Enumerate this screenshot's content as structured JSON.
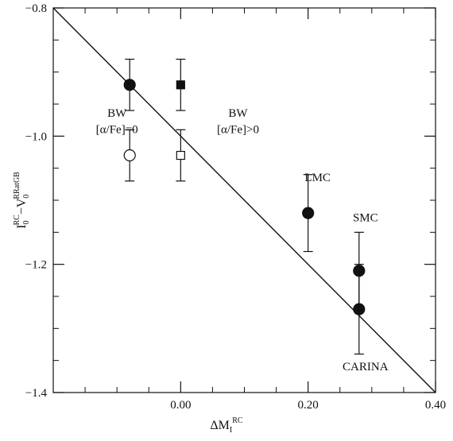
{
  "chart_data": {
    "type": "scatter",
    "xlabel": {
      "main": "ΔM",
      "sub": "I",
      "sup": "RC"
    },
    "ylabel": {
      "a": "I",
      "a_sub": "0",
      "a_sup": "RC",
      "dash": "−V",
      "b_sub": "0",
      "b_sup": "RRatGB"
    },
    "xlim": [
      -0.2,
      0.4
    ],
    "ylim": [
      -1.4,
      -0.8
    ],
    "xticks": [
      {
        "value": 0.0,
        "label": "0.00"
      },
      {
        "value": 0.2,
        "label": "0.20"
      },
      {
        "value": 0.4,
        "label": "0.40"
      }
    ],
    "xticks_minor": [
      -0.15,
      -0.1,
      -0.05,
      0.05,
      0.1,
      0.15,
      0.25,
      0.3,
      0.35
    ],
    "yticks": [
      {
        "value": -0.8,
        "label": "−0.8"
      },
      {
        "value": -1.0,
        "label": "−1.0"
      },
      {
        "value": -1.2,
        "label": "−1.2"
      },
      {
        "value": -1.4,
        "label": "−1.4"
      }
    ],
    "yticks_minor": [
      -0.85,
      -0.9,
      -0.95,
      -1.05,
      -1.1,
      -1.15,
      -1.25,
      -1.3,
      -1.35
    ],
    "line": {
      "x": [
        -0.2,
        0.4
      ],
      "y": [
        -0.8,
        -1.4
      ]
    },
    "points": [
      {
        "x": -0.08,
        "y": -0.92,
        "err": 0.04,
        "marker": "circle",
        "filled": true
      },
      {
        "x": -0.08,
        "y": -1.03,
        "err": 0.04,
        "marker": "circle",
        "filled": false
      },
      {
        "x": 0.0,
        "y": -0.92,
        "err": 0.04,
        "marker": "square",
        "filled": true
      },
      {
        "x": 0.0,
        "y": -1.03,
        "err": 0.04,
        "marker": "square",
        "filled": false
      },
      {
        "x": 0.2,
        "y": -1.12,
        "err": 0.06,
        "marker": "circle",
        "filled": true
      },
      {
        "x": 0.28,
        "y": -1.21,
        "err": 0.06,
        "marker": "circle",
        "filled": true
      },
      {
        "x": 0.28,
        "y": -1.27,
        "err": 0.07,
        "marker": "circle",
        "filled": true
      }
    ],
    "annotations": [
      {
        "text": "BW",
        "x": -0.1,
        "y": -0.97
      },
      {
        "text": "[α/Fe]=0",
        "x": -0.1,
        "y": -0.995
      },
      {
        "text": "BW",
        "x": 0.09,
        "y": -0.97
      },
      {
        "text": "[α/Fe]>0",
        "x": 0.09,
        "y": -0.995
      },
      {
        "text": "LMC",
        "x": 0.215,
        "y": -1.07
      },
      {
        "text": "SMC",
        "x": 0.29,
        "y": -1.133
      },
      {
        "text": "CARINA",
        "x": 0.29,
        "y": -1.365
      }
    ],
    "grid": false
  },
  "style": {
    "ink": "#111111",
    "background": "#ffffff"
  }
}
